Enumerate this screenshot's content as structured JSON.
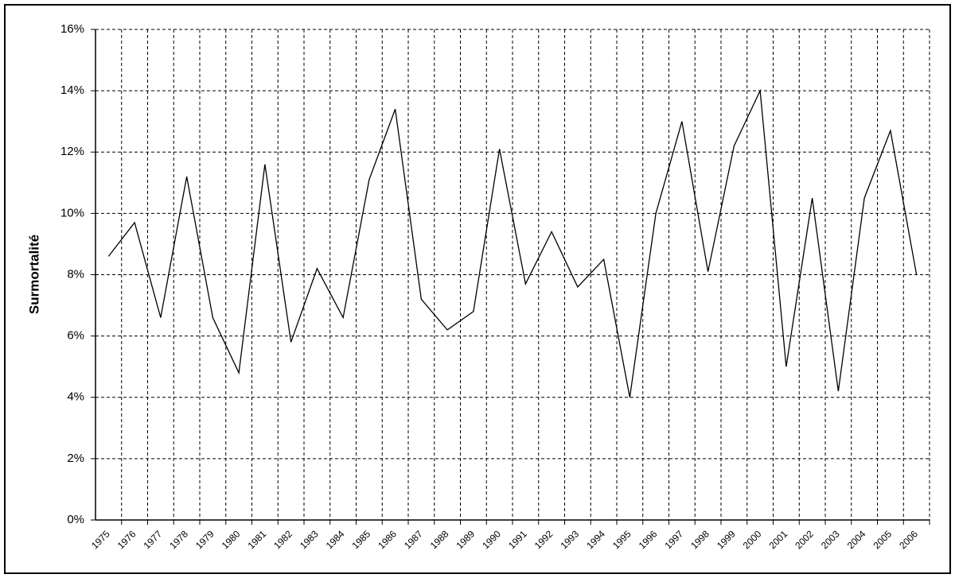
{
  "chart_data": {
    "type": "line",
    "y_label": "Surmortalité",
    "categories": [
      "1975",
      "1976",
      "1977",
      "1978",
      "1979",
      "1980",
      "1981",
      "1982",
      "1983",
      "1984",
      "1985",
      "1986",
      "1987",
      "1988",
      "1989",
      "1990",
      "1991",
      "1992",
      "1993",
      "1994",
      "1995",
      "1996",
      "1997",
      "1998",
      "1999",
      "2000",
      "2001",
      "2002",
      "2003",
      "2004",
      "2005",
      "2006"
    ],
    "values": [
      8.6,
      9.7,
      6.6,
      11.2,
      6.6,
      4.8,
      11.6,
      5.8,
      8.2,
      6.6,
      11.1,
      13.4,
      7.2,
      6.2,
      6.8,
      12.1,
      7.7,
      9.4,
      7.6,
      8.5,
      4.0,
      10.0,
      13.0,
      8.1,
      12.2,
      14.0,
      5.0,
      10.5,
      4.2,
      10.5,
      12.7,
      8.0
    ],
    "color": "#000000",
    "ylim": [
      0,
      16
    ],
    "yticks": [
      {
        "value": 0,
        "label": "0%"
      },
      {
        "value": 2,
        "label": "2%"
      },
      {
        "value": 4,
        "label": "4%"
      },
      {
        "value": 6,
        "label": "6%"
      },
      {
        "value": 8,
        "label": "8%"
      },
      {
        "value": 10,
        "label": "10%"
      },
      {
        "value": 12,
        "label": "12%"
      },
      {
        "value": 14,
        "label": "14%"
      },
      {
        "value": 16,
        "label": "16%"
      }
    ],
    "grid": true
  }
}
